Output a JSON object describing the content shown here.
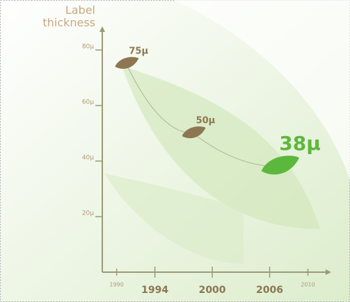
{
  "chart_data": {
    "type": "leaf",
    "y_label": "Label thickness",
    "x": [
      1991,
      1998,
      2007
    ],
    "series": [
      {
        "name": null,
        "colors": [
          "#8c7752",
          "#8c7752",
          "#5cb83c"
        ],
        "values": [
          75,
          50,
          38
        ],
        "value_labels": [
          "75µ",
          "50µ",
          "38µ"
        ]
      }
    ],
    "xlim": [
      1988.5,
      2012
    ],
    "xticks": [
      1990,
      1994,
      2000,
      2006,
      2010
    ],
    "ylim": [
      0,
      85
    ],
    "yticks": [
      {
        "value": 20,
        "label": "20µ"
      },
      {
        "value": 40,
        "label": "40µ"
      },
      {
        "value": 60,
        "label": "60µ"
      },
      {
        "value": 80,
        "label": "80µ"
      }
    ],
    "axis_color": "#9a9a78"
  }
}
